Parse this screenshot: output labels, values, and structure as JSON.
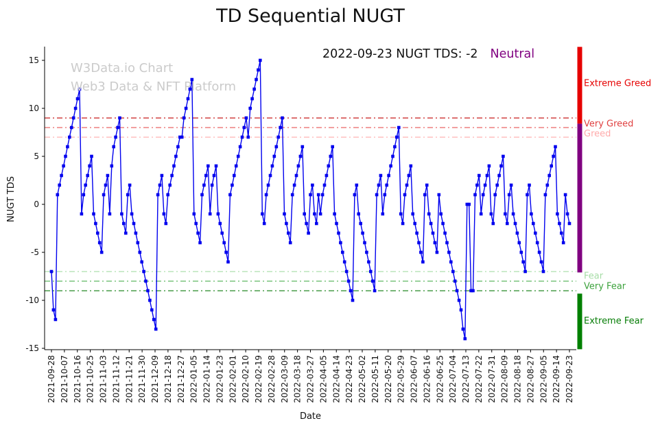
{
  "title": "TD Sequential NUGT",
  "watermark": {
    "line1": "W3Data.io Chart",
    "line2": "Web3 Data & NFT Platform"
  },
  "annotation": {
    "text": "2022-09-23 NUGT TDS: -2",
    "sentiment": "Neutral",
    "sentiment_color": "#800080"
  },
  "chart_data": {
    "type": "line",
    "title": "TD Sequential NUGT",
    "xlabel": "Date",
    "ylabel": "NUGT TDS",
    "ylim": [
      -15,
      15
    ],
    "yticks": [
      -15,
      -10,
      -5,
      0,
      5,
      10,
      15
    ],
    "grid": false,
    "legend": "none",
    "marker": "square",
    "line_color": "#0000ee",
    "x_tick_labels": [
      "2021-09-28",
      "2021-10-07",
      "2021-10-16",
      "2021-10-25",
      "2021-11-03",
      "2021-11-12",
      "2021-11-21",
      "2021-11-30",
      "2021-12-09",
      "2021-12-18",
      "2021-12-27",
      "2022-01-05",
      "2022-01-14",
      "2022-01-23",
      "2022-02-01",
      "2022-02-10",
      "2022-02-19",
      "2022-02-28",
      "2022-03-09",
      "2022-03-18",
      "2022-03-27",
      "2022-04-05",
      "2022-04-14",
      "2022-04-23",
      "2022-05-02",
      "2022-05-11",
      "2022-05-20",
      "2022-05-29",
      "2022-06-07",
      "2022-06-16",
      "2022-06-25",
      "2022-07-04",
      "2022-07-13",
      "2022-07-22",
      "2022-07-31",
      "2022-08-09",
      "2022-08-18",
      "2022-08-27",
      "2022-09-05",
      "2022-09-14",
      "2022-09-23"
    ],
    "values": [
      -7,
      -11,
      -12,
      1,
      2,
      3,
      4,
      5,
      6,
      7,
      8,
      9,
      10,
      11,
      12,
      -1,
      1,
      2,
      3,
      4,
      5,
      -1,
      -2,
      -3,
      -4,
      -5,
      1,
      2,
      3,
      -1,
      4,
      6,
      7,
      8,
      9,
      -1,
      -2,
      -3,
      1,
      2,
      -1,
      -2,
      -3,
      -4,
      -5,
      -6,
      -7,
      -8,
      -9,
      -10,
      -11,
      -12,
      -13,
      1,
      2,
      3,
      -1,
      -2,
      1,
      2,
      3,
      4,
      5,
      6,
      7,
      7,
      9,
      10,
      11,
      12,
      13,
      -1,
      -2,
      -3,
      -4,
      1,
      2,
      3,
      4,
      -1,
      2,
      3,
      4,
      -1,
      -2,
      -3,
      -4,
      -5,
      -6,
      1,
      2,
      3,
      4,
      5,
      6,
      7,
      8,
      9,
      7,
      10,
      11,
      12,
      13,
      14,
      15,
      -1,
      -2,
      1,
      2,
      3,
      4,
      5,
      6,
      7,
      8,
      9,
      -1,
      -2,
      -3,
      -4,
      1,
      2,
      3,
      4,
      5,
      6,
      -1,
      -2,
      -3,
      1,
      2,
      -1,
      -2,
      1,
      -1,
      1,
      2,
      3,
      4,
      5,
      6,
      -1,
      -2,
      -3,
      -4,
      -5,
      -6,
      -7,
      -8,
      -9,
      -10,
      1,
      2,
      -1,
      -2,
      -3,
      -4,
      -5,
      -6,
      -7,
      -8,
      -9,
      1,
      2,
      3,
      -1,
      1,
      2,
      3,
      4,
      5,
      6,
      7,
      8,
      -1,
      -2,
      1,
      2,
      3,
      4,
      -1,
      -2,
      -3,
      -4,
      -5,
      -6,
      1,
      2,
      -1,
      -2,
      -3,
      -4,
      -5,
      1,
      -1,
      -2,
      -3,
      -4,
      -5,
      -6,
      -7,
      -8,
      -9,
      -10,
      -11,
      -13,
      -14,
      0,
      0,
      -9,
      -9,
      1,
      2,
      3,
      -1,
      1,
      2,
      3,
      4,
      -1,
      -2,
      1,
      2,
      3,
      4,
      5,
      -1,
      -2,
      1,
      2,
      -1,
      -2,
      -3,
      -4,
      -5,
      -6,
      -7,
      1,
      2,
      -1,
      -2,
      -3,
      -4,
      -5,
      -6,
      -7,
      1,
      2,
      3,
      4,
      5,
      6,
      -1,
      -2,
      -3,
      -4,
      1,
      -1,
      -2
    ],
    "thresholds": [
      {
        "value": 9,
        "color": "#c00000"
      },
      {
        "value": 8,
        "color": "#e85555"
      },
      {
        "value": 7,
        "color": "#ffaaaa"
      },
      {
        "value": -7,
        "color": "#a5dca5"
      },
      {
        "value": -8,
        "color": "#4caf50"
      },
      {
        "value": -9,
        "color": "#0b7a0b"
      }
    ],
    "zone_labels": [
      {
        "text": "Extreme Greed",
        "value": 12.6,
        "color": "#e60000"
      },
      {
        "text": "Very Greed",
        "value": 8.4,
        "color": "#e04040"
      },
      {
        "text": "Greed",
        "value": 7.35,
        "color": "#ffaaaa"
      },
      {
        "text": "Fear",
        "value": -7.45,
        "color": "#a5dca5"
      },
      {
        "text": "Very Fear",
        "value": -8.55,
        "color": "#3da23d"
      },
      {
        "text": "Extreme Fear",
        "value": -12.15,
        "color": "#067d06"
      }
    ],
    "sentiment_bar": [
      {
        "from": 16.4,
        "to": 8.4,
        "color": "#e60000"
      },
      {
        "from": 8.4,
        "to": -7.1,
        "color": "#800080"
      },
      {
        "from": -9.3,
        "to": -15.1,
        "color": "#008000"
      }
    ]
  }
}
